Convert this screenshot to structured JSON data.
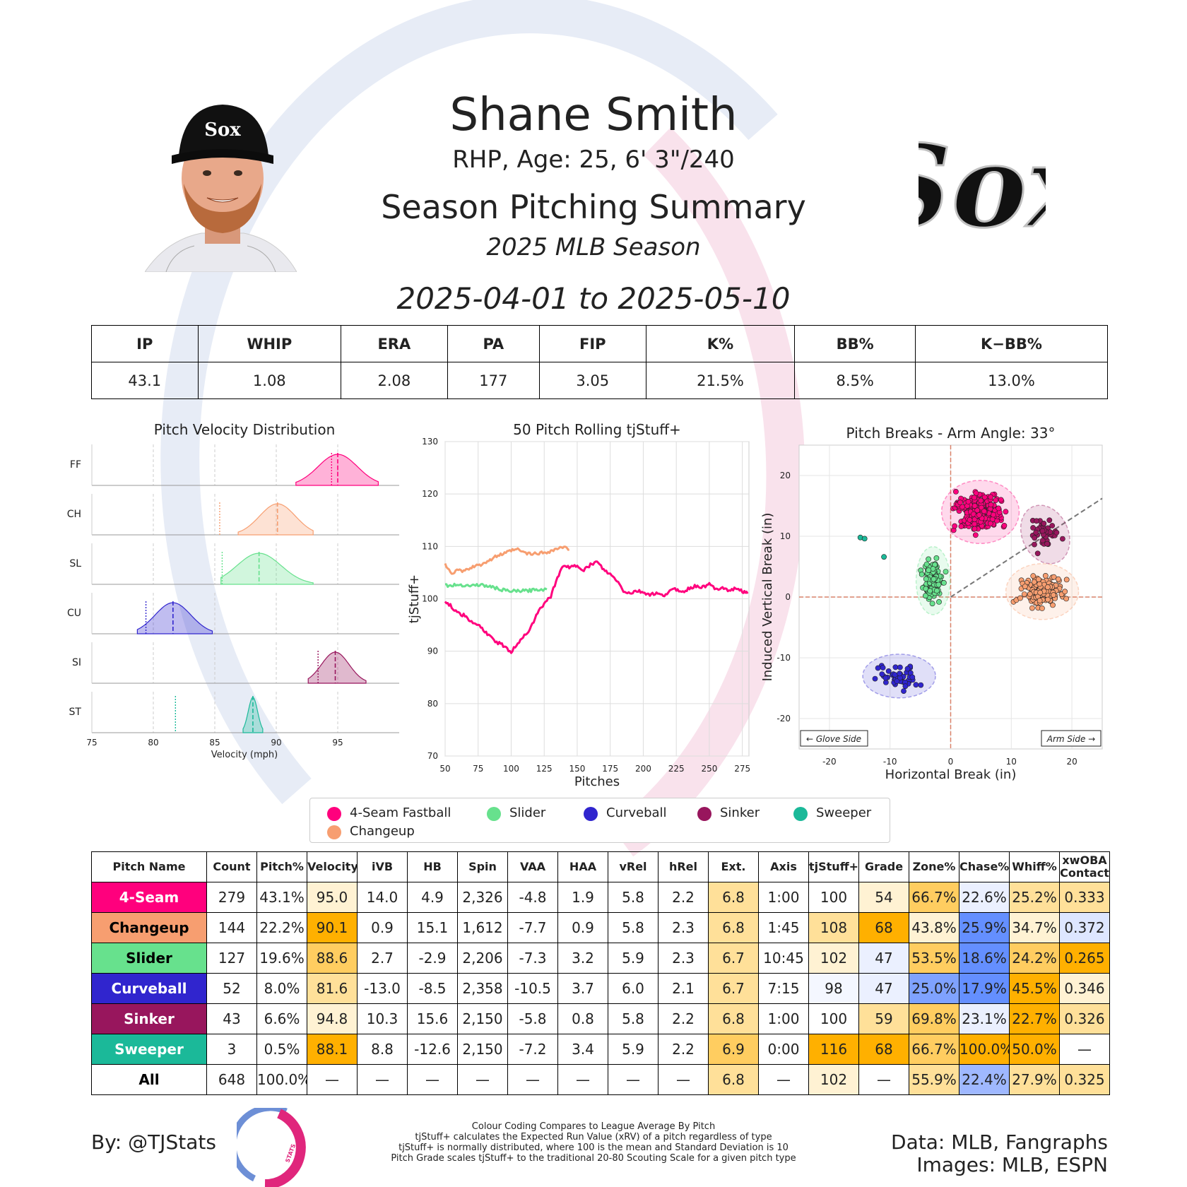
{
  "header": {
    "player_name": "Shane Smith",
    "player_info": "RHP, Age: 25, 6' 3\"/240",
    "summary_title": "Season Pitching Summary",
    "season": "2025 MLB Season",
    "date_range": "2025-04-01 to 2025-05-10",
    "team_logo_text": "Sox"
  },
  "season_stats": {
    "headers": [
      "IP",
      "WHIP",
      "ERA",
      "PA",
      "FIP",
      "K%",
      "BB%",
      "K−BB%"
    ],
    "values": [
      "43.1",
      "1.08",
      "2.08",
      "177",
      "3.05",
      "21.5%",
      "8.5%",
      "13.0%"
    ]
  },
  "colors": {
    "FF": "#FF007D",
    "CH": "#F79E70",
    "SL": "#67E18D",
    "CU": "#3025CE",
    "SI": "#98165D",
    "ST": "#1BB999",
    "good": "#FFB000",
    "bad": "#648FFF"
  },
  "chart_data": [
    {
      "type": "area",
      "title": "Pitch Velocity Distribution",
      "xlabel": "Velocity (mph)",
      "xlim": [
        75,
        100
      ],
      "xticks": [
        75,
        80,
        85,
        90,
        95
      ],
      "rows": [
        {
          "code": "FF",
          "mean": 95.0,
          "league": 94.5,
          "min": 91.6,
          "max": 98.3
        },
        {
          "code": "CH",
          "mean": 90.1,
          "league": 85.4,
          "min": 86.9,
          "max": 93.0
        },
        {
          "code": "SL",
          "mean": 88.6,
          "league": 85.6,
          "min": 85.5,
          "max": 93.0
        },
        {
          "code": "CU",
          "mean": 81.6,
          "league": 79.4,
          "min": 78.7,
          "max": 84.8
        },
        {
          "code": "SI",
          "mean": 94.8,
          "league": 93.4,
          "min": 92.6,
          "max": 97.3
        },
        {
          "code": "ST",
          "mean": 88.1,
          "league": 81.8,
          "min": 87.3,
          "max": 88.9
        }
      ]
    },
    {
      "type": "line",
      "title": "50 Pitch Rolling tjStuff+",
      "xlabel": "Pitches",
      "ylabel": "tjStuff+",
      "xlim": [
        50,
        280
      ],
      "ylim": [
        70,
        130
      ],
      "xticks": [
        50,
        75,
        100,
        125,
        150,
        175,
        200,
        225,
        250,
        275
      ],
      "yticks": [
        70,
        80,
        90,
        100,
        110,
        120,
        130
      ],
      "series": [
        {
          "name": "4-Seam Fastball",
          "code": "FF",
          "x": [
            50,
            55,
            60,
            65,
            70,
            75,
            80,
            85,
            90,
            95,
            100,
            105,
            110,
            115,
            120,
            125,
            130,
            135,
            140,
            145,
            150,
            155,
            160,
            165,
            170,
            175,
            180,
            185,
            190,
            195,
            200,
            205,
            210,
            215,
            220,
            225,
            230,
            235,
            240,
            245,
            250,
            255,
            260,
            265,
            270,
            275,
            279
          ],
          "y": [
            99.5,
            98.5,
            97.2,
            96.8,
            95.5,
            95.0,
            93.8,
            92.5,
            91.6,
            91.0,
            89.8,
            91.5,
            93.0,
            94.5,
            97.5,
            99.0,
            100.5,
            104.0,
            106.5,
            106.0,
            106.3,
            105.5,
            106.5,
            107.0,
            105.5,
            104.6,
            103.5,
            101.5,
            101.0,
            101.5,
            101.2,
            100.8,
            101.0,
            100.5,
            101.5,
            101.8,
            101.3,
            102.0,
            102.5,
            102.2,
            102.8,
            101.8,
            102.3,
            101.5,
            102.0,
            101.5,
            101.0
          ]
        },
        {
          "name": "Changeup",
          "code": "CH",
          "x": [
            50,
            55,
            60,
            65,
            70,
            75,
            80,
            85,
            90,
            95,
            100,
            105,
            110,
            115,
            120,
            125,
            130,
            135,
            140,
            144
          ],
          "y": [
            106.5,
            105.0,
            105.4,
            105.3,
            106.0,
            106.3,
            107.0,
            107.5,
            108.3,
            108.6,
            109.2,
            109.4,
            108.8,
            108.5,
            108.7,
            108.8,
            109.1,
            109.6,
            109.8,
            109.4
          ]
        },
        {
          "name": "Slider",
          "code": "SL",
          "x": [
            50,
            55,
            60,
            65,
            70,
            75,
            80,
            85,
            90,
            95,
            100,
            105,
            110,
            115,
            120,
            127
          ],
          "y": [
            102.6,
            102.5,
            102.7,
            102.6,
            102.5,
            102.7,
            102.5,
            102.3,
            101.9,
            101.6,
            101.4,
            101.5,
            101.5,
            101.6,
            101.8,
            101.8
          ]
        }
      ]
    },
    {
      "type": "scatter",
      "title": "Pitch Breaks - Arm Angle: 33°",
      "xlabel": "Horizontal Break (in)",
      "ylabel": "Induced Vertical Break (in)",
      "xlim": [
        -25,
        25
      ],
      "ylim": [
        -25,
        25
      ],
      "xticks": [
        -20,
        -10,
        0,
        10,
        20
      ],
      "yticks": [
        -20,
        -10,
        0,
        10,
        20
      ],
      "glove_side_label": "← Glove Side",
      "arm_side_label": "Arm Side →",
      "arm_angle_deg": 33,
      "series": [
        {
          "name": "4-Seam Fastball",
          "code": "FF",
          "count": 279,
          "center": [
            4.9,
            14.0
          ],
          "spread": [
            3.2,
            2.6
          ]
        },
        {
          "name": "Changeup",
          "code": "CH",
          "count": 144,
          "center": [
            15.1,
            0.9
          ],
          "spread": [
            3.0,
            2.3
          ]
        },
        {
          "name": "Slider",
          "code": "SL",
          "count": 127,
          "center": [
            -2.9,
            2.7
          ],
          "spread": [
            1.4,
            2.8
          ]
        },
        {
          "name": "Curveball",
          "code": "CU",
          "count": 52,
          "center": [
            -8.5,
            -13.0
          ],
          "spread": [
            3.0,
            1.8
          ]
        },
        {
          "name": "Sinker",
          "code": "SI",
          "count": 43,
          "center": [
            15.6,
            10.3
          ],
          "spread": [
            1.9,
            2.5
          ]
        },
        {
          "name": "Sweeper",
          "code": "ST",
          "count": 3,
          "center": [
            -12.6,
            8.8
          ],
          "spread": [
            1.2,
            1.2
          ]
        }
      ]
    }
  ],
  "legend": {
    "items": [
      "4-Seam Fastball",
      "Slider",
      "Curveball",
      "Sinker",
      "Sweeper",
      "Changeup"
    ],
    "codes": [
      "FF",
      "SL",
      "CU",
      "SI",
      "ST",
      "CH"
    ]
  },
  "pitch_table": {
    "headers": [
      "Pitch Name",
      "Count",
      "Pitch%",
      "Velocity",
      "iVB",
      "HB",
      "Spin",
      "VAA",
      "HAA",
      "vRel",
      "hRel",
      "Ext.",
      "Axis",
      "tjStuff+",
      "Grade",
      "Zone%",
      "Chase%",
      "Whiff%",
      "xwOBA Contact"
    ],
    "rows": [
      {
        "name": "4-Seam",
        "code": "FF",
        "text": "#ffffff",
        "cells": [
          "279",
          "43.1%",
          "95.0",
          "14.0",
          "4.9",
          "2,326",
          "-4.8",
          "1.9",
          "5.8",
          "2.2",
          "6.8",
          "1:00",
          "100",
          "54",
          "66.7%",
          "22.6%",
          "25.2%",
          "0.333"
        ],
        "fills": [
          "",
          "",
          "#FFF2D3",
          "",
          "",
          "",
          "",
          "",
          "",
          "",
          "#FFE099",
          "",
          "",
          "#FFF2D3",
          "#FFCD60",
          "#EBF0FF",
          "#FFE099",
          "#FFE099"
        ]
      },
      {
        "name": "Changeup",
        "code": "CH",
        "text": "#000000",
        "cells": [
          "144",
          "22.2%",
          "90.1",
          "0.9",
          "15.1",
          "1,612",
          "-7.7",
          "0.9",
          "5.8",
          "2.3",
          "6.8",
          "1:45",
          "108",
          "68",
          "43.8%",
          "25.9%",
          "34.7%",
          "0.372"
        ],
        "fills": [
          "",
          "",
          "#FFB000",
          "",
          "",
          "",
          "",
          "",
          "",
          "",
          "#FFE099",
          "",
          "#FFE099",
          "#FFB000",
          "#FFF2D3",
          "#648FFF",
          "#FFF2D3",
          "#DDE6FF"
        ]
      },
      {
        "name": "Slider",
        "code": "SL",
        "text": "#000000",
        "cells": [
          "127",
          "19.6%",
          "88.6",
          "2.7",
          "-2.9",
          "2,206",
          "-7.3",
          "3.2",
          "5.9",
          "2.3",
          "6.7",
          "10:45",
          "102",
          "47",
          "53.5%",
          "18.6%",
          "24.2%",
          "0.265"
        ],
        "fills": [
          "",
          "",
          "#FFCD60",
          "",
          "",
          "",
          "",
          "",
          "",
          "",
          "#FFE099",
          "",
          "#FFF2D3",
          "#EBF0FF",
          "#FFCD60",
          "#648FFF",
          "#FFCD60",
          "#FFB000"
        ]
      },
      {
        "name": "Curveball",
        "code": "CU",
        "text": "#ffffff",
        "cells": [
          "52",
          "8.0%",
          "81.6",
          "-13.0",
          "-8.5",
          "2,358",
          "-10.5",
          "3.7",
          "6.0",
          "2.1",
          "6.7",
          "7:15",
          "98",
          "47",
          "25.0%",
          "17.9%",
          "45.5%",
          "0.346"
        ],
        "fills": [
          "",
          "",
          "#FFE099",
          "",
          "",
          "",
          "",
          "",
          "",
          "",
          "#FFE099",
          "",
          "#F4F7FF",
          "#EBF0FF",
          "#7FA2FF",
          "#648FFF",
          "#FFB000",
          "#FFF2D3"
        ]
      },
      {
        "name": "Sinker",
        "code": "SI",
        "text": "#ffffff",
        "cells": [
          "43",
          "6.6%",
          "94.8",
          "10.3",
          "15.6",
          "2,150",
          "-5.8",
          "0.8",
          "5.8",
          "2.2",
          "6.8",
          "1:00",
          "100",
          "59",
          "69.8%",
          "23.1%",
          "22.7%",
          "0.326"
        ],
        "fills": [
          "",
          "",
          "#FFF2D3",
          "",
          "",
          "",
          "",
          "",
          "",
          "",
          "#FFE099",
          "",
          "",
          "#FFE099",
          "#FFCD60",
          "#EBF0FF",
          "#FFB000",
          "#FFE099"
        ]
      },
      {
        "name": "Sweeper",
        "code": "ST",
        "text": "#ffffff",
        "cells": [
          "3",
          "0.5%",
          "88.1",
          "8.8",
          "-12.6",
          "2,150",
          "-7.2",
          "3.4",
          "5.9",
          "2.2",
          "6.9",
          "0:00",
          "116",
          "68",
          "66.7%",
          "100.0%",
          "50.0%",
          "—"
        ],
        "fills": [
          "",
          "",
          "#FFB000",
          "",
          "",
          "",
          "",
          "",
          "",
          "",
          "#FFCD60",
          "",
          "#FFB000",
          "#FFB000",
          "#FFCD60",
          "#FFB000",
          "#FFB000",
          ""
        ]
      },
      {
        "name": "All",
        "code": "ALL",
        "text": "#000000",
        "cells": [
          "648",
          "100.0%",
          "—",
          "—",
          "—",
          "—",
          "—",
          "—",
          "—",
          "—",
          "6.8",
          "—",
          "102",
          "—",
          "55.9%",
          "22.4%",
          "27.9%",
          "0.325"
        ],
        "fills": [
          "",
          "",
          "",
          "",
          "",
          "",
          "",
          "",
          "",
          "",
          "#FFE099",
          "",
          "#FFF2D3",
          "",
          "#FFE099",
          "#9FB8FF",
          "#FFE099",
          "#FFE099"
        ]
      }
    ]
  },
  "footer": {
    "by": "By: @TJStats",
    "logo_text": "STATS",
    "notes": [
      "Colour Coding Compares to League Average By Pitch",
      "tjStuff+ calculates the Expected Run Value (xRV) of a pitch regardless of type",
      "tjStuff+ is normally distributed, where 100 is the mean and Standard Deviation is 10",
      "Pitch Grade scales tjStuff+ to the traditional 20-80 Scouting Scale for a given pitch type"
    ],
    "data_credit": "Data: MLB, Fangraphs",
    "images_credit": "Images: MLB, ESPN"
  }
}
